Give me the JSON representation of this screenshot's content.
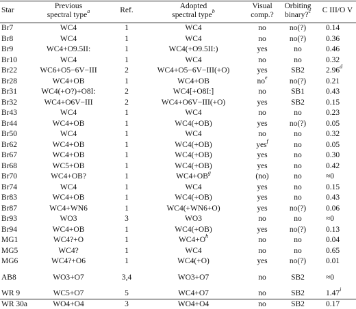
{
  "header": {
    "star": "Star",
    "prev_line1": "Previous",
    "prev_line2": "spectral type",
    "prev_note": "a",
    "ref": "Ref.",
    "adopt_line1": "Adopted",
    "adopt_line2": "spectral type",
    "adopt_note": "b",
    "vis_line1": "Visual",
    "vis_line2": "comp.?",
    "orb_line1": "Orbiting",
    "orb_line2": "binary?",
    "orb_note": "c",
    "civ": "C III/O V"
  },
  "rows": [
    {
      "star": "Br7",
      "prev": "WC4",
      "ref": "1",
      "adopt": "WC4",
      "adopt_note": "",
      "vis": "no",
      "vis_note": "",
      "orb": "no(?)",
      "civ": "0.14",
      "civ_note": ""
    },
    {
      "star": "Br8",
      "prev": "WC4",
      "ref": "1",
      "adopt": "WC4",
      "adopt_note": "",
      "vis": "no",
      "vis_note": "",
      "orb": "no(?)",
      "civ": "0.36",
      "civ_note": ""
    },
    {
      "star": "Br9",
      "prev": "WC4+O9.5II:",
      "ref": "1",
      "adopt": "WC4(+O9.5II:)",
      "adopt_note": "",
      "vis": "yes",
      "vis_note": "",
      "orb": "no",
      "civ": "0.46",
      "civ_note": ""
    },
    {
      "star": "Br10",
      "prev": "WC4",
      "ref": "1",
      "adopt": "WC4",
      "adopt_note": "",
      "vis": "no",
      "vis_note": "",
      "orb": "no",
      "civ": "0.32",
      "civ_note": ""
    },
    {
      "star": "Br22",
      "prev": "WC6+O5−6V−III",
      "ref": "2",
      "adopt": "WC4+O5−6V−III(+O)",
      "adopt_note": "",
      "vis": "yes",
      "vis_note": "",
      "orb": "SB2",
      "civ": "2.96",
      "civ_note": "d"
    },
    {
      "star": "Br28",
      "prev": "WC4+OB",
      "ref": "1",
      "adopt": "WC4+OB",
      "adopt_note": "",
      "vis": "no",
      "vis_note": "e",
      "orb": "no(?)",
      "civ": "0.21",
      "civ_note": ""
    },
    {
      "star": "Br31",
      "prev": "WC4(+O?)+O8I:",
      "ref": "2",
      "adopt": "WC4[+O8I:]",
      "adopt_note": "",
      "vis": "no",
      "vis_note": "",
      "orb": "SB1",
      "civ": "0.43",
      "civ_note": ""
    },
    {
      "star": "Br32",
      "prev": "WC4+O6V−III",
      "ref": "2",
      "adopt": "WC4+O6V−III(+O)",
      "adopt_note": "",
      "vis": "yes",
      "vis_note": "",
      "orb": "SB2",
      "civ": "0.15",
      "civ_note": ""
    },
    {
      "star": "Br43",
      "prev": "WC4",
      "ref": "1",
      "adopt": "WC4",
      "adopt_note": "",
      "vis": "no",
      "vis_note": "",
      "orb": "no",
      "civ": "0.23",
      "civ_note": ""
    },
    {
      "star": "Br44",
      "prev": "WC4+OB",
      "ref": "1",
      "adopt": "WC4(+OB)",
      "adopt_note": "",
      "vis": "yes",
      "vis_note": "",
      "orb": "no(?)",
      "civ": "0.05",
      "civ_note": ""
    },
    {
      "star": "Br50",
      "prev": "WC4",
      "ref": "1",
      "adopt": "WC4",
      "adopt_note": "",
      "vis": "no",
      "vis_note": "",
      "orb": "no",
      "civ": "0.32",
      "civ_note": ""
    },
    {
      "star": "Br62",
      "prev": "WC4+OB",
      "ref": "1",
      "adopt": "WC4(+OB)",
      "adopt_note": "",
      "vis": "yes",
      "vis_note": "f",
      "orb": "no",
      "civ": "0.05",
      "civ_note": ""
    },
    {
      "star": "Br67",
      "prev": "WC4+OB",
      "ref": "1",
      "adopt": "WC4(+OB)",
      "adopt_note": "",
      "vis": "yes",
      "vis_note": "",
      "orb": "no",
      "civ": "0.30",
      "civ_note": ""
    },
    {
      "star": "Br68",
      "prev": "WC5+OB",
      "ref": "1",
      "adopt": "WC4(+OB)",
      "adopt_note": "",
      "vis": "yes",
      "vis_note": "",
      "orb": "no",
      "civ": "0.42",
      "civ_note": ""
    },
    {
      "star": "Br70",
      "prev": "WC4+OB?",
      "ref": "1",
      "adopt": "WC4+OB",
      "adopt_note": "g",
      "vis": "(no)",
      "vis_note": "",
      "orb": "no",
      "civ": "≈0",
      "civ_note": ""
    },
    {
      "star": "Br74",
      "prev": "WC4",
      "ref": "1",
      "adopt": "WC4",
      "adopt_note": "",
      "vis": "yes",
      "vis_note": "",
      "orb": "no",
      "civ": "0.15",
      "civ_note": ""
    },
    {
      "star": "Br83",
      "prev": "WC4+OB",
      "ref": "1",
      "adopt": "WC4(+OB)",
      "adopt_note": "",
      "vis": "yes",
      "vis_note": "",
      "orb": "no",
      "civ": "0.43",
      "civ_note": ""
    },
    {
      "star": "Br87",
      "prev": "WC4+WN6",
      "ref": "1",
      "adopt": "WC4(+WN6+O)",
      "adopt_note": "",
      "vis": "yes",
      "vis_note": "",
      "orb": "no(?)",
      "civ": "0.06",
      "civ_note": ""
    },
    {
      "star": "Br93",
      "prev": "WO3",
      "ref": "3",
      "adopt": "WO3",
      "adopt_note": "",
      "vis": "no",
      "vis_note": "",
      "orb": "no",
      "civ": "≈0",
      "civ_note": ""
    },
    {
      "star": "Br94",
      "prev": "WC4+OB",
      "ref": "1",
      "adopt": "WC4(+OB)",
      "adopt_note": "",
      "vis": "yes",
      "vis_note": "",
      "orb": "no(?)",
      "civ": "0.13",
      "civ_note": ""
    },
    {
      "star": "MG1",
      "prev": "WC4?+O",
      "ref": "1",
      "adopt": "WC4+O",
      "adopt_note": "h",
      "vis": "no",
      "vis_note": "",
      "orb": "no",
      "civ": "0.04",
      "civ_note": ""
    },
    {
      "star": "MG5",
      "prev": "WC4?",
      "ref": "1",
      "adopt": "WC4",
      "adopt_note": "",
      "vis": "no",
      "vis_note": "",
      "orb": "no",
      "civ": "0.65",
      "civ_note": ""
    },
    {
      "star": "MG6",
      "prev": "WC4?+O6",
      "ref": "1",
      "adopt": "WC4(+O)",
      "adopt_note": "",
      "vis": "yes",
      "vis_note": "",
      "orb": "no(?)",
      "civ": "0.01",
      "civ_note": ""
    },
    {
      "star": "AB8",
      "prev": "WO3+O7",
      "ref": "3,4",
      "adopt": "WO3+O7",
      "adopt_note": "",
      "vis": "no",
      "vis_note": "",
      "orb": "SB2",
      "civ": "≈0",
      "civ_note": ""
    },
    {
      "star": "WR 9",
      "prev": "WC5+O7",
      "ref": "5",
      "adopt": "WC4+O7",
      "adopt_note": "",
      "vis": "no",
      "vis_note": "",
      "orb": "SB2",
      "civ": "1.47",
      "civ_note": "i"
    },
    {
      "star": "WR 30a",
      "prev": "WO4+O4",
      "ref": "3",
      "adopt": "WO4+O4",
      "adopt_note": "",
      "vis": "no",
      "vis_note": "",
      "orb": "SB2",
      "civ": "0.17",
      "civ_note": ""
    }
  ]
}
